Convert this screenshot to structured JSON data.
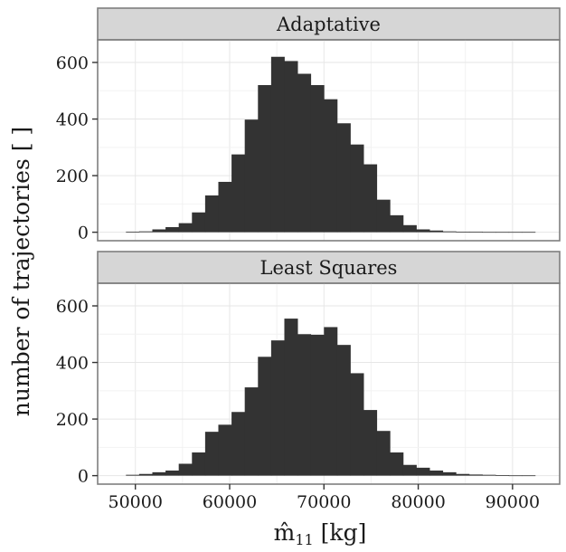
{
  "chart_data": {
    "type": "bar",
    "xlabel": "m̂11 [kg]",
    "ylabel": "number of trajectories [ ]",
    "xlim": [
      46000,
      95000
    ],
    "x_ticks": [
      50000,
      60000,
      70000,
      80000,
      90000
    ],
    "x_tick_labels": [
      "50000",
      "60000",
      "70000",
      "80000",
      "90000"
    ],
    "y_ticks": [
      0,
      200,
      400,
      600
    ],
    "y_tick_labels": [
      "0",
      "200",
      "400",
      "600"
    ],
    "ylim": [
      -30,
      680
    ],
    "grid": true,
    "bin_starts": [
      49000,
      50400,
      51800,
      53200,
      54600,
      56000,
      57400,
      58800,
      60200,
      61600,
      63000,
      64400,
      65800,
      67200,
      68600,
      70000,
      71400,
      72800,
      74200,
      75600,
      77000,
      78400,
      79800,
      81200,
      82600,
      84000,
      85400,
      86800,
      88200,
      89600,
      91000
    ],
    "bin_width": 1400,
    "panels": [
      {
        "title": "Adaptative",
        "values": [
          2,
          3,
          10,
          18,
          32,
          70,
          130,
          178,
          275,
          398,
          520,
          620,
          605,
          560,
          520,
          470,
          385,
          310,
          240,
          115,
          60,
          25,
          10,
          6,
          3,
          2,
          2,
          1,
          1,
          1,
          1
        ]
      },
      {
        "title": "Least Squares",
        "values": [
          3,
          6,
          12,
          18,
          42,
          82,
          155,
          180,
          225,
          312,
          420,
          478,
          555,
          500,
          498,
          525,
          462,
          362,
          232,
          158,
          82,
          38,
          28,
          18,
          12,
          6,
          4,
          3,
          2,
          1,
          1
        ]
      }
    ]
  }
}
